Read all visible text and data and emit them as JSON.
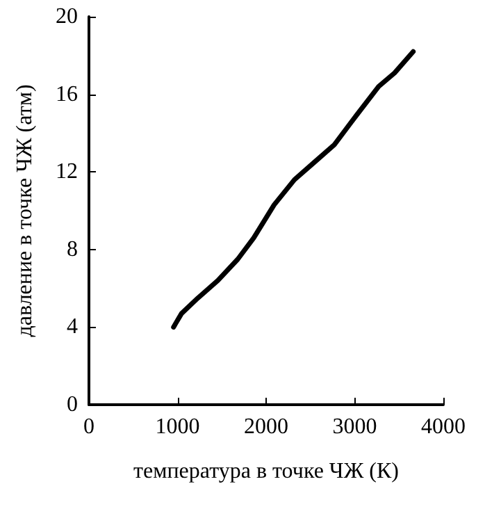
{
  "chart_data": {
    "type": "line",
    "xlabel": "температура в точке ЧЖ (К)",
    "ylabel": "давление в точке ЧЖ (атм)",
    "series": [
      {
        "color": "#000000",
        "x": [
          955,
          1045,
          1230,
          1455,
          1680,
          1860,
          2090,
          2320,
          2545,
          2770,
          3000,
          3270,
          3450,
          3660
        ],
        "values": [
          4.0,
          4.7,
          5.5,
          6.4,
          7.5,
          8.6,
          10.3,
          11.6,
          12.5,
          13.4,
          14.8,
          16.4,
          17.1,
          18.2
        ]
      }
    ],
    "xlim": [
      0,
      4000
    ],
    "xticks": [
      0,
      1000,
      2000,
      3000,
      4000
    ],
    "ylim": [
      0,
      20
    ],
    "yticks": [
      0,
      4,
      8,
      12,
      16,
      20
    ],
    "marker": "none",
    "line_style": "solid"
  }
}
